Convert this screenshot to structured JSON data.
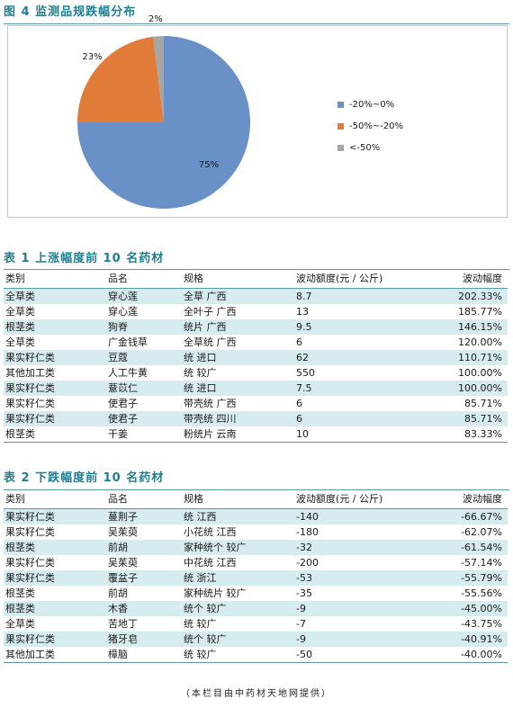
{
  "figure": {
    "title": "图 4   监测品规跌幅分布"
  },
  "chart_data": {
    "type": "pie",
    "slices": [
      {
        "label": "-20%~0%",
        "value": 75,
        "display": "75%",
        "color": "#6a90c8"
      },
      {
        "label": "-50%~-20%",
        "value": 23,
        "display": "23%",
        "color": "#e07b39"
      },
      {
        "label": "<-50%",
        "value": 2,
        "display": "2%",
        "color": "#a6a6a6"
      }
    ],
    "legend_position": "right",
    "title": "",
    "colors": {
      "blue": "#6a90c8",
      "orange": "#e07b39",
      "gray": "#a6a6a6"
    }
  },
  "table1": {
    "title": "表 1   上涨幅度前 10 名药材",
    "headers": [
      "类别",
      "品名",
      "规格",
      "波动额度(元 / 公斤)",
      "波动幅度"
    ],
    "rows": [
      [
        "全草类",
        "穿心莲",
        "全草  广西",
        "8.7",
        "202.33%"
      ],
      [
        "全草类",
        "穿心莲",
        "全叶子  广西",
        "13",
        "185.77%"
      ],
      [
        "根茎类",
        "狗脊",
        "统片  广西",
        "9.5",
        "146.15%"
      ],
      [
        "全草类",
        "广金钱草",
        "全草统  广西",
        "6",
        "120.00%"
      ],
      [
        "果实籽仁类",
        "豆蔻",
        "统  进口",
        "62",
        "110.71%"
      ],
      [
        "其他加工类",
        "人工牛黄",
        "统  较广",
        "550",
        "100.00%"
      ],
      [
        "果实籽仁类",
        "薏苡仁",
        "统  进口",
        "7.5",
        "100.00%"
      ],
      [
        "果实籽仁类",
        "使君子",
        "带壳统  广西",
        "6",
        "85.71%"
      ],
      [
        "果实籽仁类",
        "使君子",
        "带壳统  四川",
        "6",
        "85.71%"
      ],
      [
        "根茎类",
        "干姜",
        "粉统片  云南",
        "10",
        "83.33%"
      ]
    ]
  },
  "table2": {
    "title": "表 2   下跌幅度前 10 名药材",
    "headers": [
      "类别",
      "品名",
      "规格",
      "波动额度(元 / 公斤)",
      "波动幅度"
    ],
    "rows": [
      [
        "果实籽仁类",
        "蔓荆子",
        "统  江西",
        "-140",
        "-66.67%"
      ],
      [
        "果实籽仁类",
        "吴茱萸",
        "小花统  江西",
        "-180",
        "-62.07%"
      ],
      [
        "根茎类",
        "前胡",
        "家种统个  较广",
        "-32",
        "-61.54%"
      ],
      [
        "果实籽仁类",
        "吴茱萸",
        "中花统  江西",
        "-200",
        "-57.14%"
      ],
      [
        "果实籽仁类",
        "覆盆子",
        "统  浙江",
        "-53",
        "-55.79%"
      ],
      [
        "根茎类",
        "前胡",
        "家种统片  较广",
        "-35",
        "-55.56%"
      ],
      [
        "根茎类",
        "木香",
        "统个  较广",
        "-9",
        "-45.00%"
      ],
      [
        "全草类",
        "苦地丁",
        "统  较广",
        "-7",
        "-43.75%"
      ],
      [
        "果实籽仁类",
        "猪牙皂",
        "统个  较广",
        "-9",
        "-40.91%"
      ],
      [
        "其他加工类",
        "樟脑",
        "统  较广",
        "-50",
        "-40.00%"
      ]
    ]
  },
  "footer": "（本栏目由中药材天地网提供）"
}
